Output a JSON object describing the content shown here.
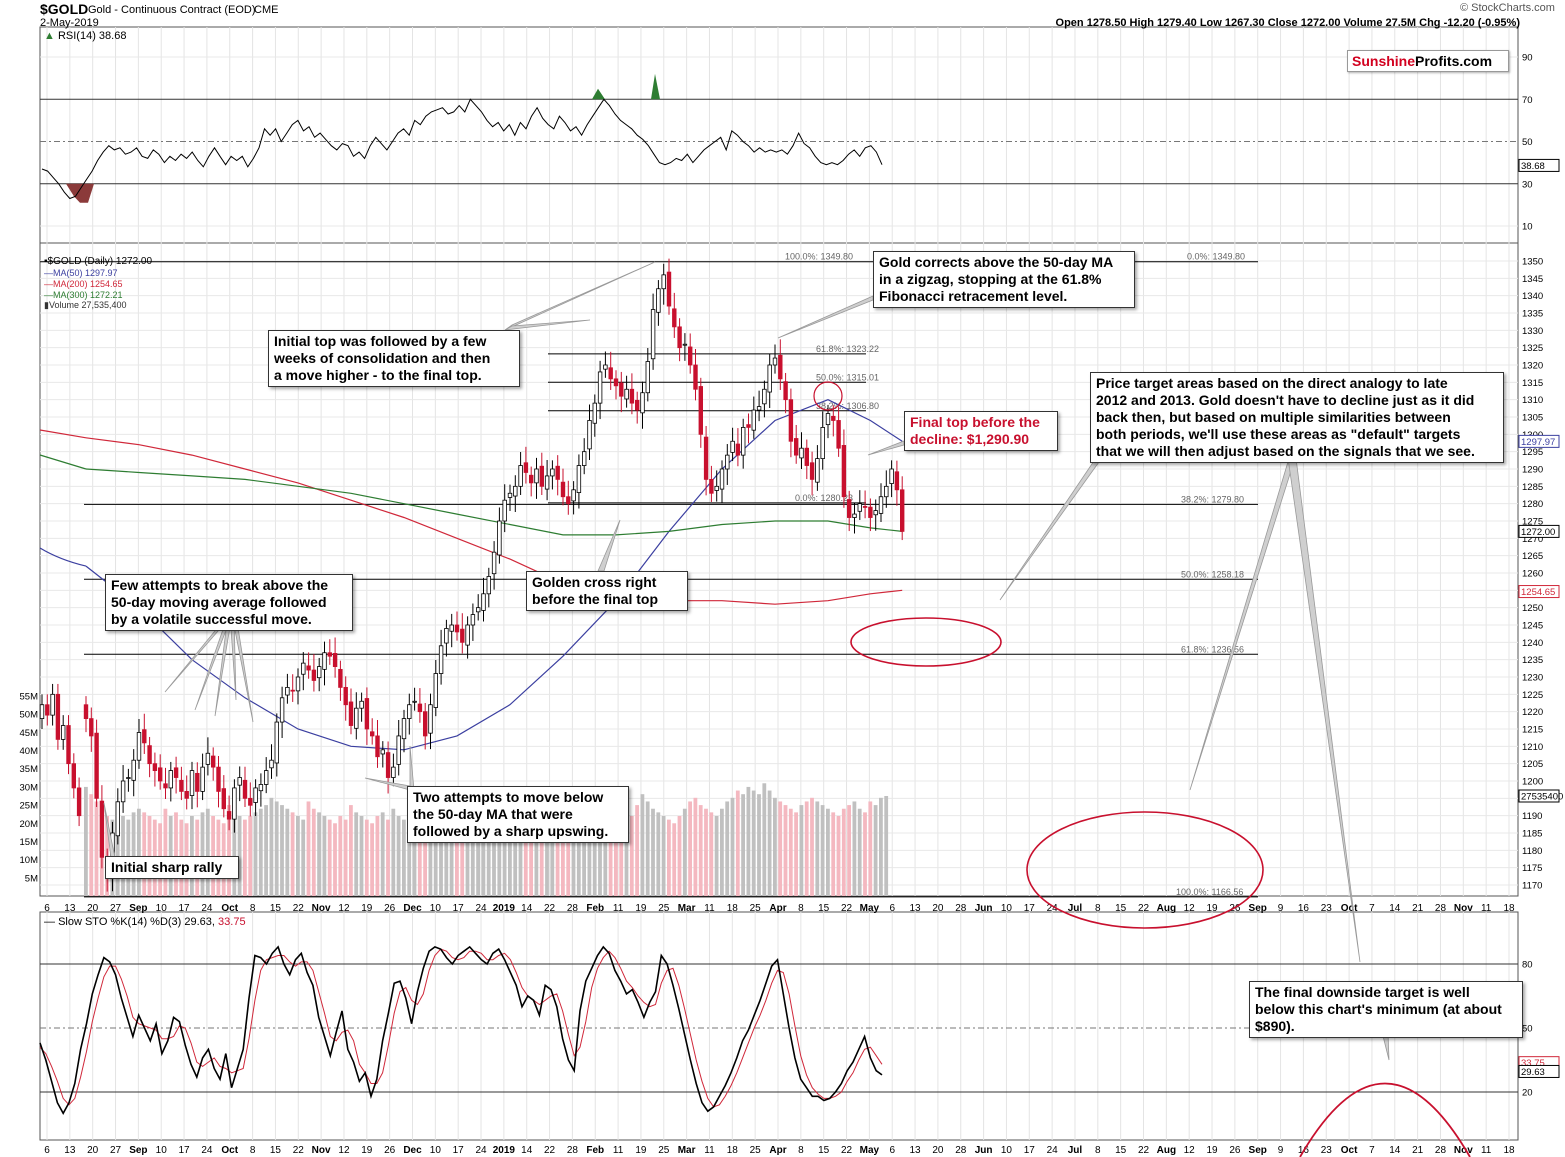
{
  "header": {
    "symbol": "$GOLD",
    "name": "Gold - Continuous Contract (EOD)",
    "exchange": "CME",
    "date": "2-May-2019",
    "watermark": "© StockCharts.com",
    "ohlc": "Open 1278.50 High 1279.40 Low 1267.30 Close 1272.00 Volume 27.5M Chg -12.20 (-0.95%)"
  },
  "logo": {
    "part1": "Sunshine",
    "part2": "Profits.com"
  },
  "legend": {
    "rsi": "RSI(14) 38.68",
    "price": "$GOLD (Daily) 1272.00",
    "ma50": "MA(50) 1297.97",
    "ma200": "MA(200) 1254.65",
    "ma300": "MA(300) 1272.21",
    "volume": "Volume 27,535,400",
    "sto": "Slow STO %K(14) %D(3) 29.63,",
    "sto_d": "33.75"
  },
  "colors": {
    "up": "#000000",
    "down": "#c8102e",
    "ma50": "#3b3fa0",
    "ma200": "#d0283a",
    "ma300": "#2e7d32",
    "vol_down": "#f4b8c0",
    "vol_up": "#c0c0c0",
    "ellipse": "#c8102e"
  },
  "annotations": {
    "initial_top": "Initial top was followed by a few\nweeks of consolidation and  then\na move higher - to the final top.",
    "gold_corrects": "Gold corrects above the 50-day MA\nin a zigzag, stopping at the 61.8%\nFibonacci retracement level.",
    "final_top": "Final top before the\ndecline: $1,290.90",
    "price_target": "Price target areas based on the direct analogy to late\n2012 and 2013. Gold doesn't have to decline just as it did\nback then, but based on multiple similarities between\nboth periods, we'll use these areas as \"default\" targets\nthat we will then adjust based on the signals that we see.",
    "few_attempts": "Few attempts to break above the\n50-day moving average followed\nby a volatile successful move.",
    "golden_cross": "Golden cross right\nbefore the final top",
    "two_attempts": "Two attempts to move below\nthe 50-day MA that were\nfollowed by a sharp upswing.",
    "initial_rally": "Initial sharp rally",
    "final_target": "The final downside target is well\nbelow this chart's minimum (at about\n$890)."
  },
  "chart_data": [
    {
      "type": "line",
      "name": "RSI(14)",
      "ylim": [
        0,
        100
      ],
      "ticks": [
        10,
        30,
        50,
        70,
        90
      ],
      "last_value": 38.68,
      "values": [
        37,
        36,
        33,
        30,
        26,
        23,
        24,
        28,
        32,
        36,
        41,
        45,
        48,
        46,
        47,
        44,
        45,
        47,
        43,
        42,
        46,
        44,
        40,
        43,
        41,
        44,
        42,
        45,
        41,
        38,
        43,
        47,
        43,
        39,
        43,
        41,
        43,
        38,
        42,
        47,
        56,
        53,
        56,
        50,
        54,
        58,
        60,
        55,
        57,
        52,
        54,
        51,
        48,
        46,
        49,
        48,
        43,
        45,
        42,
        48,
        52,
        49,
        46,
        50,
        54,
        56,
        53,
        60,
        58,
        62,
        64,
        65,
        66,
        63,
        64,
        67,
        64,
        70,
        67,
        64,
        60,
        57,
        59,
        55,
        58,
        53,
        59,
        56,
        62,
        66,
        61,
        58,
        56,
        62,
        59,
        55,
        57,
        53,
        58,
        62,
        66,
        70,
        67,
        63,
        60,
        58,
        56,
        53,
        51,
        48,
        44,
        40,
        39,
        40,
        42,
        41,
        44,
        40,
        43,
        46,
        48,
        50,
        52,
        46,
        55,
        53,
        50,
        48,
        45,
        47,
        45,
        46,
        45,
        46,
        44,
        48,
        54,
        49,
        47,
        43,
        40,
        39,
        40,
        39,
        41,
        44,
        46,
        43,
        47,
        48,
        45,
        39
      ]
    },
    {
      "type": "candlestick",
      "name": "$GOLD (Daily)",
      "ylim": [
        1165,
        1355
      ],
      "tick_step": 5,
      "last_close": 1272.0,
      "x_labels": [
        "6",
        "13",
        "20",
        "27",
        "Sep",
        "10",
        "17",
        "24",
        "Oct",
        "8",
        "15",
        "22",
        "Nov",
        "12",
        "19",
        "26",
        "Dec",
        "10",
        "17",
        "24",
        "2019",
        "14",
        "22",
        "28",
        "Feb",
        "11",
        "19",
        "25",
        "Mar",
        "11",
        "18",
        "25",
        "Apr",
        "8",
        "15",
        "22",
        "May",
        "6",
        "13",
        "20",
        "28",
        "Jun",
        "10",
        "17",
        "24",
        "Jul",
        "8",
        "15",
        "22",
        "Aug",
        "12",
        "19",
        "26",
        "Sep",
        "9",
        "16",
        "23",
        "Oct",
        "7",
        "14",
        "21",
        "28",
        "Nov",
        "11",
        "18"
      ],
      "closes": [
        1218,
        1213,
        1195,
        1178,
        1172,
        1185,
        1194,
        1200,
        1201,
        1206,
        1214,
        1211,
        1205,
        1203,
        1200,
        1198,
        1203,
        1201,
        1197,
        1195,
        1203,
        1197,
        1204,
        1208,
        1204,
        1197,
        1192,
        1189,
        1198,
        1201,
        1195,
        1193,
        1198,
        1199,
        1203,
        1206,
        1217,
        1224,
        1227,
        1226,
        1230,
        1234,
        1232,
        1229,
        1233,
        1237,
        1236,
        1233,
        1227,
        1222,
        1216,
        1221,
        1223,
        1215,
        1213,
        1207,
        1209,
        1201,
        1204,
        1213,
        1218,
        1222,
        1223,
        1220,
        1213,
        1222,
        1231,
        1239,
        1244,
        1245,
        1243,
        1240,
        1245,
        1248,
        1250,
        1254,
        1259,
        1266,
        1275,
        1281,
        1283,
        1285,
        1291,
        1289,
        1286,
        1290,
        1285,
        1288,
        1290,
        1287,
        1282,
        1280,
        1284,
        1291,
        1295,
        1304,
        1309,
        1318,
        1320,
        1316,
        1314,
        1311,
        1313,
        1309,
        1307,
        1312,
        1321,
        1336,
        1342,
        1346,
        1337,
        1331,
        1325,
        1326,
        1320,
        1313,
        1300,
        1287,
        1283,
        1285,
        1290,
        1294,
        1298,
        1294,
        1302,
        1302,
        1307,
        1308,
        1313,
        1320,
        1322,
        1316,
        1310,
        1298,
        1294,
        1296,
        1291,
        1287,
        1293,
        1302,
        1306,
        1304,
        1296,
        1282,
        1276,
        1277,
        1280,
        1279,
        1276,
        1278,
        1282,
        1285,
        1290,
        1284,
        1272
      ]
    },
    {
      "type": "line",
      "name": "MA(50)",
      "last_value": 1297.97,
      "points": [
        [
          0,
          1262
        ],
        [
          10,
          1250
        ],
        [
          20,
          1235
        ],
        [
          30,
          1224
        ],
        [
          40,
          1215
        ],
        [
          50,
          1210
        ],
        [
          60,
          1209
        ],
        [
          70,
          1213
        ],
        [
          80,
          1222
        ],
        [
          90,
          1236
        ],
        [
          100,
          1252
        ],
        [
          110,
          1272
        ],
        [
          120,
          1290
        ],
        [
          130,
          1304
        ],
        [
          140,
          1310
        ],
        [
          148,
          1304
        ],
        [
          154,
          1298
        ]
      ]
    },
    {
      "type": "line",
      "name": "MA(200)",
      "last_value": 1254.65,
      "points": [
        [
          0,
          1299
        ],
        [
          10,
          1297
        ],
        [
          20,
          1294
        ],
        [
          30,
          1290
        ],
        [
          40,
          1286
        ],
        [
          50,
          1281
        ],
        [
          60,
          1276
        ],
        [
          70,
          1270
        ],
        [
          80,
          1264
        ],
        [
          90,
          1257
        ],
        [
          100,
          1253
        ],
        [
          110,
          1252
        ],
        [
          120,
          1252
        ],
        [
          130,
          1251
        ],
        [
          140,
          1252
        ],
        [
          148,
          1254
        ],
        [
          154,
          1255
        ]
      ]
    },
    {
      "type": "line",
      "name": "MA(300)",
      "last_value": 1272.21,
      "points": [
        [
          0,
          1290
        ],
        [
          10,
          1289
        ],
        [
          20,
          1288
        ],
        [
          30,
          1287
        ],
        [
          40,
          1285
        ],
        [
          50,
          1283
        ],
        [
          60,
          1280
        ],
        [
          70,
          1277
        ],
        [
          80,
          1274
        ],
        [
          90,
          1271
        ],
        [
          100,
          1271
        ],
        [
          110,
          1272
        ],
        [
          120,
          1274
        ],
        [
          130,
          1275
        ],
        [
          140,
          1275
        ],
        [
          148,
          1273
        ],
        [
          154,
          1272
        ]
      ]
    },
    {
      "type": "bar",
      "name": "Volume",
      "y_ticks": [
        "5M",
        "10M",
        "15M",
        "20M",
        "25M",
        "30M",
        "35M",
        "40M",
        "45M",
        "50M",
        "55M"
      ],
      "last_value": "27535400",
      "values_millions": [
        30,
        28,
        26,
        24,
        22,
        21,
        20,
        22,
        21,
        23,
        24,
        23,
        22,
        21,
        20,
        24,
        22,
        23,
        21,
        20,
        22,
        21,
        23,
        24,
        22,
        21,
        20,
        25,
        23,
        22,
        21,
        22,
        23,
        24,
        25,
        27,
        26,
        25,
        24,
        23,
        22,
        21,
        26,
        24,
        23,
        22,
        21,
        20,
        22,
        21,
        25,
        23,
        22,
        21,
        20,
        22,
        23,
        21,
        24,
        22,
        21,
        20,
        19,
        20,
        21,
        22,
        21,
        20,
        24,
        23,
        22,
        21,
        20,
        22,
        23,
        21,
        22,
        26,
        24,
        23,
        22,
        21,
        20,
        18,
        17,
        19,
        18,
        17,
        19,
        20,
        21,
        22,
        26,
        24,
        27,
        29,
        28,
        26,
        24,
        23,
        22,
        21,
        20,
        22,
        25,
        28,
        26,
        24,
        23,
        22,
        21,
        20,
        22,
        24,
        26,
        27,
        25,
        24,
        23,
        22,
        24,
        26,
        27,
        29,
        28,
        30,
        29,
        28,
        31,
        29,
        27,
        26,
        25,
        24,
        23,
        25,
        26,
        27,
        26,
        25,
        24,
        23,
        22,
        24,
        25,
        26,
        24,
        23,
        26,
        25,
        27,
        27.5
      ],
      "fibonacci": [
        {
          "label": "100.0%: 1349.80",
          "value": 1349.8
        },
        {
          "label": "0.0%: 1349.80",
          "value": 1349.8
        },
        {
          "label": "61.8%: 1323.22",
          "value": 1323.22
        },
        {
          "label": "50.0%: 1315.01",
          "value": 1315.01
        },
        {
          "label": "38.2%: 1306.80",
          "value": 1306.8
        },
        {
          "label": "0.0%: 1280.23",
          "value": 1280.23
        },
        {
          "label": "38.2%: 1279.80",
          "value": 1279.8
        },
        {
          "label": "50.0%: 1258.18",
          "value": 1258.18
        },
        {
          "label": "61.8%: 1236.56",
          "value": 1236.56
        },
        {
          "label": "100.0%: 1166.56",
          "value": 1166.56
        }
      ]
    },
    {
      "type": "line",
      "name": "Slow STO %K(14) %D(3)",
      "ylim": [
        0,
        100
      ],
      "ticks": [
        20,
        50,
        80
      ],
      "k_last": 29.63,
      "d_last": 33.75,
      "k": [
        43,
        35,
        25,
        15,
        10,
        15,
        24,
        40,
        52,
        66,
        75,
        83,
        81,
        75,
        64,
        55,
        46,
        56,
        50,
        44,
        52,
        38,
        44,
        55,
        53,
        42,
        33,
        27,
        36,
        40,
        31,
        26,
        38,
        22,
        31,
        40,
        64,
        84,
        83,
        80,
        85,
        88,
        80,
        75,
        82,
        85,
        76,
        70,
        55,
        46,
        37,
        48,
        58,
        40,
        34,
        25,
        29,
        18,
        26,
        44,
        57,
        71,
        72,
        64,
        52,
        67,
        78,
        86,
        88,
        87,
        83,
        80,
        84,
        86,
        88,
        85,
        82,
        80,
        85,
        87,
        82,
        76,
        70,
        60,
        65,
        63,
        56,
        70,
        68,
        60,
        45,
        35,
        30,
        58,
        72,
        78,
        84,
        88,
        85,
        77,
        72,
        66,
        68,
        62,
        55,
        62,
        67,
        84,
        80,
        70,
        59,
        47,
        35,
        24,
        15,
        11,
        13,
        18,
        23,
        29,
        36,
        44,
        49,
        56,
        63,
        71,
        79,
        82,
        66,
        50,
        36,
        26,
        22,
        18,
        18,
        16,
        17,
        20,
        24,
        30,
        34,
        40,
        46,
        36,
        30,
        28
      ],
      "d": [
        41,
        38,
        32,
        25,
        17,
        14,
        17,
        27,
        39,
        53,
        64,
        74,
        79,
        79,
        73,
        65,
        55,
        52,
        51,
        50,
        49,
        45,
        45,
        46,
        51,
        50,
        43,
        34,
        32,
        34,
        36,
        32,
        31,
        29,
        30,
        31,
        45,
        63,
        77,
        82,
        83,
        84,
        84,
        81,
        79,
        81,
        81,
        77,
        67,
        57,
        46,
        44,
        48,
        49,
        44,
        33,
        29,
        24,
        24,
        29,
        42,
        57,
        67,
        69,
        63,
        61,
        66,
        77,
        84,
        87,
        86,
        83,
        82,
        83,
        86,
        86,
        85,
        82,
        82,
        84,
        85,
        82,
        76,
        69,
        65,
        63,
        61,
        63,
        65,
        66,
        58,
        47,
        37,
        41,
        53,
        69,
        78,
        83,
        86,
        83,
        78,
        72,
        69,
        65,
        62,
        60,
        61,
        71,
        77,
        78,
        70,
        59,
        47,
        35,
        25,
        17,
        13,
        14,
        18,
        23,
        29,
        36,
        43,
        50,
        56,
        63,
        71,
        77,
        76,
        66,
        51,
        37,
        28,
        22,
        19,
        17,
        17,
        18,
        20,
        25,
        29,
        35,
        40,
        41,
        37,
        33
      ]
    }
  ]
}
